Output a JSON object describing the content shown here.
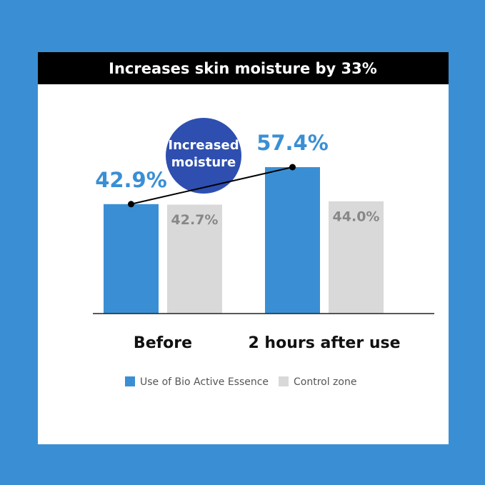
{
  "chart_data": {
    "type": "bar",
    "title": "Increases skin moisture by 33%",
    "annotation": [
      "Increased",
      "moisture"
    ],
    "categories": [
      "Before",
      "2 hours after use"
    ],
    "series": [
      {
        "name": "Use of Bio Active Essence",
        "color": "#3a8fd4",
        "values": [
          42.9,
          57.4
        ],
        "value_labels": [
          "42.9%",
          "57.4%"
        ]
      },
      {
        "name": "Control zone",
        "color": "#d9d9d9",
        "values": [
          42.7,
          44.0
        ],
        "value_labels": [
          "42.7%",
          "44.0%"
        ]
      }
    ],
    "ylim": [
      0,
      70
    ]
  }
}
